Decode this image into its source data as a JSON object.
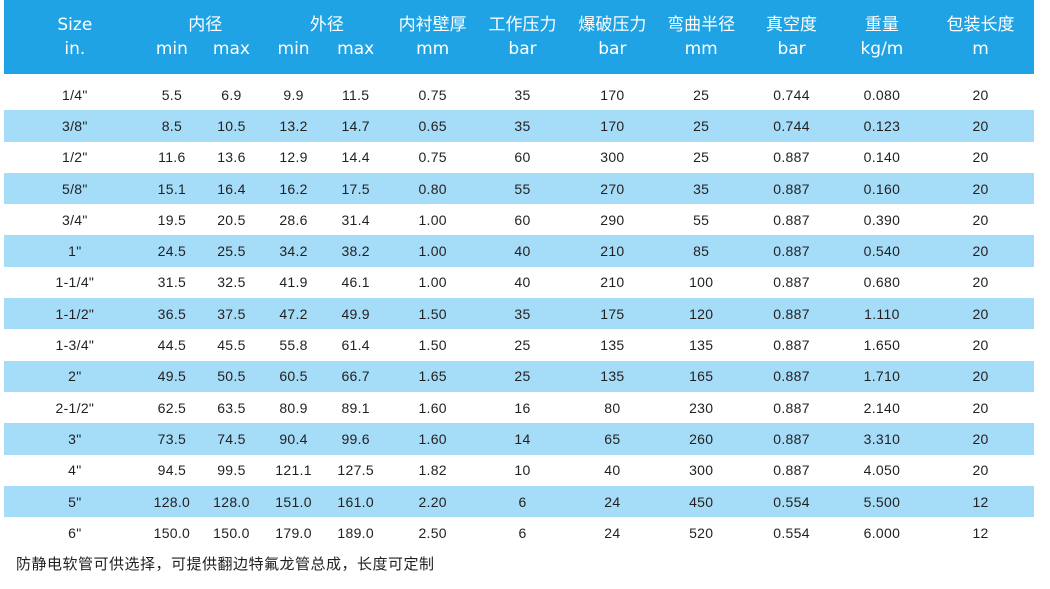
{
  "header": {
    "size": {
      "top": "Size",
      "bottom": "in."
    },
    "id": {
      "top": "内径",
      "min": "min",
      "max": "max"
    },
    "od": {
      "top": "外径",
      "min": "min",
      "max": "max"
    },
    "wall": {
      "top": "内衬壁厚",
      "bottom": "mm"
    },
    "working": {
      "top": "工作压力",
      "bottom": "bar"
    },
    "burst": {
      "top": "爆破压力",
      "bottom": "bar"
    },
    "bend": {
      "top": "弯曲半径",
      "bottom": "mm"
    },
    "vacuum": {
      "top": "真空度",
      "bottom": "bar"
    },
    "weight": {
      "top": "重量",
      "bottom": "kg/m"
    },
    "length": {
      "top": "包装长度",
      "bottom": "m"
    }
  },
  "rows": [
    [
      "1/4\"",
      "5.5",
      "6.9",
      "9.9",
      "11.5",
      "0.75",
      "35",
      "170",
      "25",
      "0.744",
      "0.080",
      "20"
    ],
    [
      "3/8\"",
      "8.5",
      "10.5",
      "13.2",
      "14.7",
      "0.65",
      "35",
      "170",
      "25",
      "0.744",
      "0.123",
      "20"
    ],
    [
      "1/2\"",
      "11.6",
      "13.6",
      "12.9",
      "14.4",
      "0.75",
      "60",
      "300",
      "25",
      "0.887",
      "0.140",
      "20"
    ],
    [
      "5/8\"",
      "15.1",
      "16.4",
      "16.2",
      "17.5",
      "0.80",
      "55",
      "270",
      "35",
      "0.887",
      "0.160",
      "20"
    ],
    [
      "3/4\"",
      "19.5",
      "20.5",
      "28.6",
      "31.4",
      "1.00",
      "60",
      "290",
      "55",
      "0.887",
      "0.390",
      "20"
    ],
    [
      "1\"",
      "24.5",
      "25.5",
      "34.2",
      "38.2",
      "1.00",
      "40",
      "210",
      "85",
      "0.887",
      "0.540",
      "20"
    ],
    [
      "1-1/4\"",
      "31.5",
      "32.5",
      "41.9",
      "46.1",
      "1.00",
      "40",
      "210",
      "100",
      "0.887",
      "0.680",
      "20"
    ],
    [
      "1-1/2\"",
      "36.5",
      "37.5",
      "47.2",
      "49.9",
      "1.50",
      "35",
      "175",
      "120",
      "0.887",
      "1.110",
      "20"
    ],
    [
      "1-3/4\"",
      "44.5",
      "45.5",
      "55.8",
      "61.4",
      "1.50",
      "25",
      "135",
      "135",
      "0.887",
      "1.650",
      "20"
    ],
    [
      "2\"",
      "49.5",
      "50.5",
      "60.5",
      "66.7",
      "1.65",
      "25",
      "135",
      "165",
      "0.887",
      "1.710",
      "20"
    ],
    [
      "2-1/2\"",
      "62.5",
      "63.5",
      "80.9",
      "89.1",
      "1.60",
      "16",
      "80",
      "230",
      "0.887",
      "2.140",
      "20"
    ],
    [
      "3\"",
      "73.5",
      "74.5",
      "90.4",
      "99.6",
      "1.60",
      "14",
      "65",
      "260",
      "0.887",
      "3.310",
      "20"
    ],
    [
      "4\"",
      "94.5",
      "99.5",
      "121.1",
      "127.5",
      "1.82",
      "10",
      "40",
      "300",
      "0.887",
      "4.050",
      "20"
    ],
    [
      "5\"",
      "128.0",
      "128.0",
      "151.0",
      "161.0",
      "2.20",
      "6",
      "24",
      "450",
      "0.554",
      "5.500",
      "12"
    ],
    [
      "6\"",
      "150.0",
      "150.0",
      "179.0",
      "189.0",
      "2.50",
      "6",
      "24",
      "520",
      "0.554",
      "6.000",
      "12"
    ]
  ],
  "footnote": "防静电软管可供选择，可提供翻边特氟龙管总成，长度可定制",
  "colors": {
    "header_bg": "#1fa3e4",
    "alt_row_bg": "#a5dcf7"
  }
}
